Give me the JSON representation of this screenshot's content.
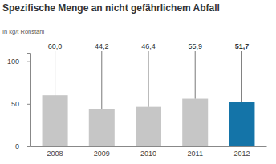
{
  "chart_data": {
    "type": "bar",
    "title": "Spezifische Menge an nicht gefährlichem Abfall",
    "subtitle": "In kg/t Rohstahl",
    "categories": [
      "2008",
      "2009",
      "2010",
      "2011",
      "2012"
    ],
    "values": [
      60.0,
      44.2,
      46.4,
      55.9,
      51.7
    ],
    "value_labels": [
      "60,0",
      "44,2",
      "46,4",
      "55,9",
      "51,7"
    ],
    "colors": [
      "#c6c6c6",
      "#c6c6c6",
      "#c6c6c6",
      "#c6c6c6",
      "#1474a8"
    ],
    "ylim": [
      0,
      110
    ],
    "yticks": [
      0,
      50,
      100
    ],
    "grid": false,
    "data_labels": true
  }
}
